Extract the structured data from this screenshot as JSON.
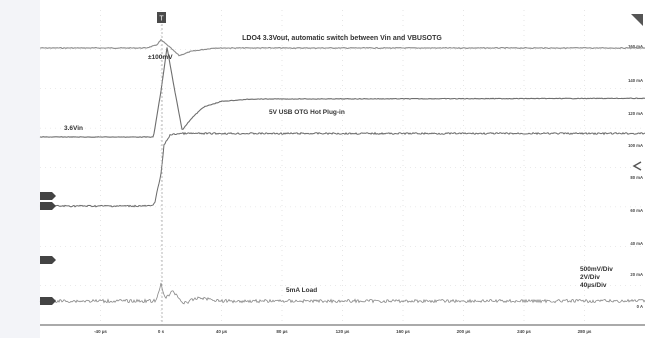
{
  "chart_data": {
    "type": "line",
    "title": "LDO4 3.3Vout, automatic switch between Vin and VBUSOTG",
    "annotations": [
      "±100mV",
      "5V USB OTG Hot Plug-in",
      "3.6Vin",
      "5mA Load"
    ],
    "scale_text": [
      "500mV/Div",
      "2V/Div",
      "40µs/Div"
    ],
    "time_ticks": [
      "-40 µs",
      "0 s",
      "40 µs",
      "80 µs",
      "120 µs",
      "160 µs",
      "200 µs",
      "240 µs",
      "280 µs"
    ],
    "right_ticks": [
      "160 mA",
      "140 mA",
      "120 mA",
      "100 mA",
      "80 mA",
      "60 mA",
      "40 mA",
      "20 mA",
      "0 A"
    ],
    "xlim": [
      -80,
      320
    ],
    "trigger_time": 0,
    "grid": true,
    "series": [
      {
        "name": "LDO4 3.3Vout",
        "description": "flat; small ringing dip of about ±100mV at 0 s, settled within 40 µs",
        "x": [
          -80,
          -10,
          -3,
          0,
          5,
          12,
          20,
          35,
          320
        ],
        "y": [
          0,
          0,
          0.3,
          0.85,
          0.2,
          -0.8,
          -0.35,
          0,
          0
        ]
      },
      {
        "name": "3.6Vin / 5V USB OTG",
        "description": "rises from 3.6V baseline with overshoot and damped ringing",
        "x": [
          -80,
          -5,
          0,
          4,
          8,
          14,
          20,
          28,
          40,
          60,
          320
        ],
        "y": [
          3.6,
          3.6,
          5.6,
          7.5,
          6.0,
          3.9,
          4.4,
          4.9,
          5.15,
          5.25,
          5.28
        ]
      },
      {
        "name": "VBUSOTG",
        "description": "0V before plug-in, steps to 5V at 0 s",
        "x": [
          -80,
          -6,
          -4,
          0,
          2,
          6,
          12,
          320
        ],
        "y": [
          0,
          0,
          0.3,
          2.2,
          4.2,
          4.9,
          5.0,
          5.0
        ]
      },
      {
        "name": "Load current",
        "description": "5mA load with noise, transient spikes near 0 s",
        "x": [
          -80,
          -3,
          0,
          3,
          8,
          15,
          25,
          40,
          320
        ],
        "y": [
          5,
          5,
          40,
          10,
          25,
          0,
          12,
          5,
          5
        ]
      }
    ]
  }
}
